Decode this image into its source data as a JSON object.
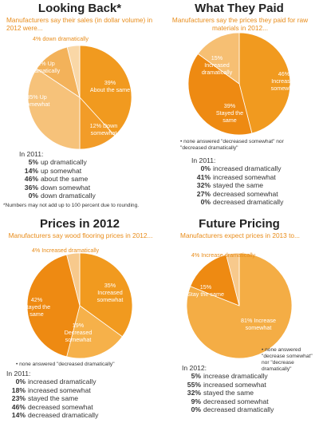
{
  "chart_data": [
    {
      "type": "pie",
      "title": "Looking Back*",
      "subtitle": "Manufacturers say their sales (in dollar volume) in 2012 were...",
      "slices": [
        {
          "label": "39% About the same",
          "value": 39,
          "color": "#f19a1f"
        },
        {
          "label": "12% Down somewhat",
          "value": 12,
          "color": "#f29c28"
        },
        {
          "label": "35% Up somewhat",
          "value": 35,
          "color": "#f6c27a"
        },
        {
          "label": "12% Up dramatically",
          "value": 12,
          "color": "#f3b25a"
        },
        {
          "label": "4% down dramatically",
          "value": 4,
          "color": "#f9d7a6"
        }
      ],
      "prev_heading": "In 2011:",
      "prev": [
        {
          "value": "5%",
          "label": "up dramatically"
        },
        {
          "value": "14%",
          "label": "up somewhat"
        },
        {
          "value": "46%",
          "label": "about the same"
        },
        {
          "value": "36%",
          "label": "down somewhat"
        },
        {
          "value": "0%",
          "label": "down dramatically"
        }
      ]
    },
    {
      "type": "pie",
      "title": "What They Paid",
      "subtitle": "Manufacturers say the prices they paid for raw materials in 2012...",
      "slices": [
        {
          "label": "46% Increased somewhat",
          "value": 46,
          "color": "#f19a1f"
        },
        {
          "label": "39% Stayed the same",
          "value": 39,
          "color": "#ee8a12"
        },
        {
          "label": "15% Increased dramatically",
          "value": 15,
          "color": "#f6bf73"
        }
      ],
      "note": "• none answered \"decreased somewhat\" nor \"decreased dramatically\"",
      "prev_heading": "In 2011:",
      "prev": [
        {
          "value": "0%",
          "label": "increased dramatically"
        },
        {
          "value": "41%",
          "label": "increased somewhat"
        },
        {
          "value": "32%",
          "label": "stayed the same"
        },
        {
          "value": "27%",
          "label": "decreased somewhat"
        },
        {
          "value": "0%",
          "label": "decreased dramatically"
        }
      ]
    },
    {
      "type": "pie",
      "title": "Prices in 2012",
      "subtitle": "Manufacturers say wood flooring prices in 2012...",
      "slices": [
        {
          "label": "35% Increased somewhat",
          "value": 35,
          "color": "#f19a1f"
        },
        {
          "label": "19% Decreased somewhat",
          "value": 19,
          "color": "#f6b14a"
        },
        {
          "label": "42% Stayed the same",
          "value": 42,
          "color": "#ee8a12"
        },
        {
          "label": "4% Increased dramatically",
          "value": 4,
          "color": "#f7c98c"
        }
      ],
      "note": "• none answered \"decreased dramatically\"",
      "prev_heading": "In 2011:",
      "prev": [
        {
          "value": "0%",
          "label": "increased dramatically"
        },
        {
          "value": "18%",
          "label": "increased somewhat"
        },
        {
          "value": "23%",
          "label": "stayed the same"
        },
        {
          "value": "46%",
          "label": "decreased somewhat"
        },
        {
          "value": "14%",
          "label": "decreased dramatically"
        }
      ]
    },
    {
      "type": "pie",
      "title": "Future Pricing",
      "subtitle": "Manufacturers expect prices in 2013 to...",
      "slices": [
        {
          "label": "81% Increase somewhat",
          "value": 81,
          "color": "#f4ad45"
        },
        {
          "label": "15% Stay the same",
          "value": 15,
          "color": "#ee8a12"
        },
        {
          "label": "4% Increase dramatically",
          "value": 4,
          "color": "#f7c98c"
        }
      ],
      "note": "• none answered \"decrease somewhat\" nor \"decrease dramatically\"",
      "prev_heading": "In 2012:",
      "prev": [
        {
          "value": "5%",
          "label": "increase dramatically"
        },
        {
          "value": "55%",
          "label": "increased somewhat"
        },
        {
          "value": "32%",
          "label": "stayed the same"
        },
        {
          "value": "9%",
          "label": "decreased somewhat"
        },
        {
          "value": "0%",
          "label": "decreased dramatically"
        }
      ]
    }
  ],
  "footnote": "*Numbers may not add up to 100 percent due to rounding."
}
